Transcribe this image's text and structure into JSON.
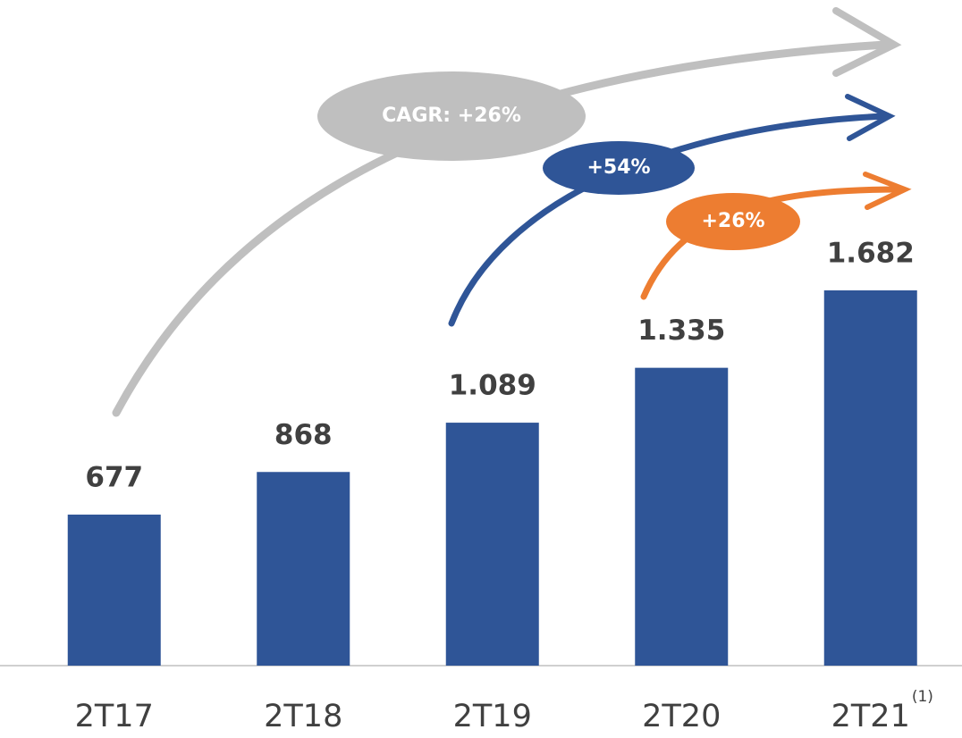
{
  "chart_data": {
    "type": "bar",
    "categories": [
      "2T17",
      "2T18",
      "2T19",
      "2T20",
      "2T21"
    ],
    "category_notes": [
      null,
      null,
      null,
      null,
      "(1)"
    ],
    "values": [
      677,
      868,
      1089,
      1335,
      1682
    ],
    "value_labels": [
      "677",
      "868",
      "1.089",
      "1.335",
      "1.682"
    ],
    "color": "#2f5597",
    "annotations": [
      {
        "text": "CAGR: +26%",
        "color": "#bfbfbf"
      },
      {
        "text": "+54%",
        "color": "#2f5597"
      },
      {
        "text": "+26%",
        "color": "#ed7d31"
      }
    ]
  }
}
